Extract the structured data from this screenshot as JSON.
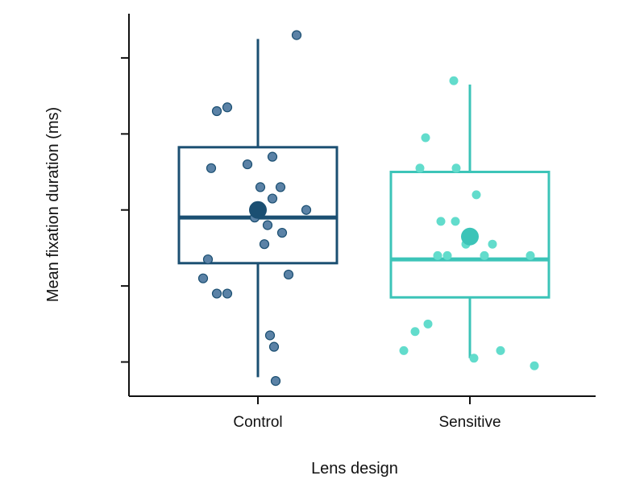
{
  "chart_data": {
    "type": "box",
    "title": "",
    "xlabel": "Lens design",
    "ylabel": "Mean fixation duration (ms)",
    "y_tick_labels_shown": false,
    "ylim": [
      0,
      100
    ],
    "yticks": [
      9,
      29,
      49,
      69,
      89
    ],
    "grid": false,
    "legend": "none",
    "categories": [
      "Control",
      "Sensitive"
    ],
    "series": [
      {
        "category": "Control",
        "color": "#1b4f72",
        "point_color": "#5b82a6",
        "whisker_low": 5,
        "q1": 35,
        "median": 47,
        "mean": 49,
        "q3": 65.5,
        "whisker_high": 94,
        "points": [
          {
            "x": -0.62,
            "y": 36
          },
          {
            "x": -0.51,
            "y": 27
          },
          {
            "x": -0.38,
            "y": 27
          },
          {
            "x": -0.58,
            "y": 60
          },
          {
            "x": -0.68,
            "y": 31
          },
          {
            "x": -0.51,
            "y": 75
          },
          {
            "x": -0.38,
            "y": 76
          },
          {
            "x": -0.13,
            "y": 61
          },
          {
            "x": 0.03,
            "y": 55
          },
          {
            "x": 0.18,
            "y": 63
          },
          {
            "x": 0.18,
            "y": 52
          },
          {
            "x": 0.08,
            "y": 40
          },
          {
            "x": 0.12,
            "y": 45
          },
          {
            "x": 0.3,
            "y": 43
          },
          {
            "x": 0.6,
            "y": 49
          },
          {
            "x": 0.38,
            "y": 32
          },
          {
            "x": 0.28,
            "y": 55
          },
          {
            "x": 0.15,
            "y": 16
          },
          {
            "x": 0.2,
            "y": 13
          },
          {
            "x": 0.22,
            "y": 4
          },
          {
            "x": 0.48,
            "y": 95
          },
          {
            "x": -0.04,
            "y": 47
          }
        ]
      },
      {
        "category": "Sensitive",
        "color": "#3cc4b8",
        "point_color": "#62dccc",
        "whisker_low": 10,
        "q1": 26,
        "median": 36,
        "mean": 42,
        "q3": 59,
        "whisker_high": 82,
        "points": [
          {
            "x": -0.82,
            "y": 12
          },
          {
            "x": -0.68,
            "y": 17
          },
          {
            "x": -0.52,
            "y": 19
          },
          {
            "x": -0.4,
            "y": 37
          },
          {
            "x": -0.28,
            "y": 37
          },
          {
            "x": -0.36,
            "y": 46
          },
          {
            "x": -0.18,
            "y": 46
          },
          {
            "x": -0.05,
            "y": 40
          },
          {
            "x": 0.18,
            "y": 37
          },
          {
            "x": 0.28,
            "y": 40
          },
          {
            "x": 0.75,
            "y": 37
          },
          {
            "x": -0.62,
            "y": 60
          },
          {
            "x": -0.55,
            "y": 68
          },
          {
            "x": -0.17,
            "y": 60
          },
          {
            "x": 0.08,
            "y": 53
          },
          {
            "x": -0.2,
            "y": 83
          },
          {
            "x": 0.05,
            "y": 10
          },
          {
            "x": 0.38,
            "y": 12
          },
          {
            "x": 0.8,
            "y": 8
          }
        ]
      }
    ]
  }
}
